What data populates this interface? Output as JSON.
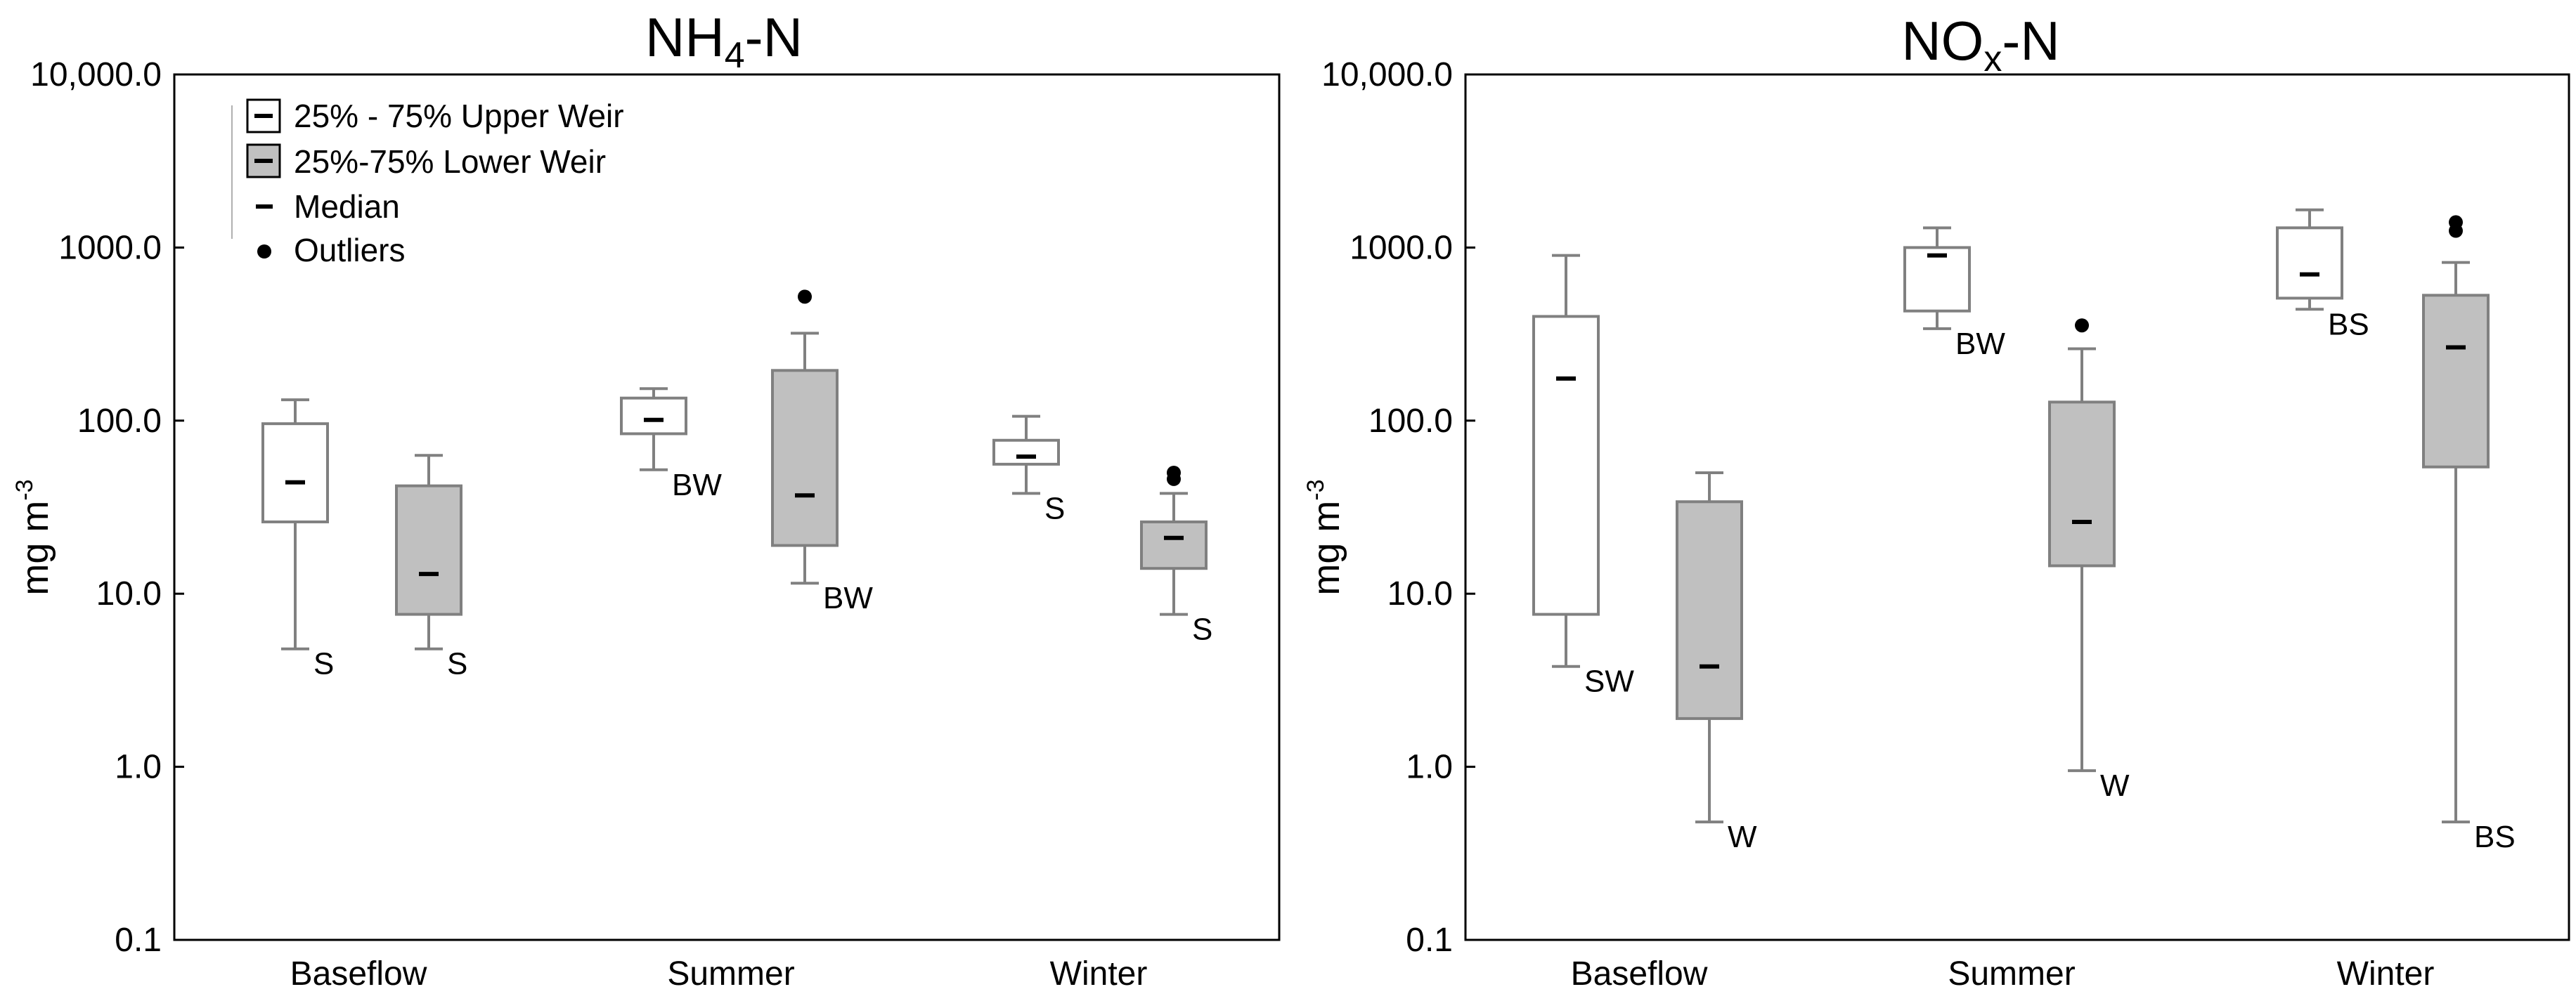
{
  "chart_data": [
    {
      "type": "box",
      "title": "NH4-N",
      "title_main": "NH",
      "title_sub": "4",
      "title_tail": "-N",
      "ylabel": "mg m",
      "ylabel_sup": "-3",
      "yscale": "log",
      "ylim": [
        0.1,
        10000
      ],
      "yticks": [
        0.1,
        1,
        10,
        100,
        1000,
        10000
      ],
      "ytick_labels": [
        "0.1",
        "1.0",
        "10.0",
        "100.0",
        "1000.0",
        "10,000.0"
      ],
      "categories": [
        "Baseflow",
        "Summer",
        "Winter"
      ],
      "legend": {
        "upper": "25% - 75% Upper Weir",
        "lower": "25%-75% Lower Weir",
        "median": "Median",
        "outliers": "Outliers"
      },
      "series": [
        {
          "name": "Upper Weir",
          "style": "upper",
          "boxes": [
            {
              "category": "Baseflow",
              "min": 4.8,
              "q1": 26,
              "median": 44,
              "q3": 96,
              "max": 132,
              "outliers": [],
              "label": "S"
            },
            {
              "category": "Summer",
              "min": 52,
              "q1": 84,
              "median": 101,
              "q3": 135,
              "max": 153,
              "outliers": [],
              "label": "BW"
            },
            {
              "category": "Winter",
              "min": 38,
              "q1": 56,
              "median": 62,
              "q3": 77,
              "max": 106,
              "outliers": [],
              "label": "S"
            }
          ]
        },
        {
          "name": "Lower Weir",
          "style": "lower",
          "boxes": [
            {
              "category": "Baseflow",
              "min": 4.8,
              "q1": 7.6,
              "median": 13,
              "q3": 42,
              "max": 63,
              "outliers": [],
              "label": "S"
            },
            {
              "category": "Summer",
              "min": 11.5,
              "q1": 19,
              "median": 37,
              "q3": 195,
              "max": 320,
              "outliers": [
                520
              ],
              "label": "BW"
            },
            {
              "category": "Winter",
              "min": 7.6,
              "q1": 14,
              "median": 21,
              "q3": 26,
              "max": 38,
              "outliers": [
                46,
                50
              ],
              "label": "S"
            }
          ]
        }
      ]
    },
    {
      "type": "box",
      "title": "NOx-N",
      "title_main": "NO",
      "title_sub": "x",
      "title_tail": "-N",
      "ylabel": "mg m",
      "ylabel_sup": "-3",
      "yscale": "log",
      "ylim": [
        0.1,
        10000
      ],
      "yticks": [
        0.1,
        1,
        10,
        100,
        1000,
        10000
      ],
      "ytick_labels": [
        "0.1",
        "1.0",
        "10.0",
        "100.0",
        "1000.0",
        "10,000.0"
      ],
      "categories": [
        "Baseflow",
        "Summer",
        "Winter"
      ],
      "series": [
        {
          "name": "Upper Weir",
          "style": "upper",
          "boxes": [
            {
              "category": "Baseflow",
              "min": 3.8,
              "q1": 7.6,
              "median": 175,
              "q3": 400,
              "max": 900,
              "outliers": [],
              "label": "SW"
            },
            {
              "category": "Summer",
              "min": 340,
              "q1": 430,
              "median": 900,
              "q3": 1000,
              "max": 1300,
              "outliers": [],
              "label": "BW"
            },
            {
              "category": "Winter",
              "min": 440,
              "q1": 510,
              "median": 700,
              "q3": 1300,
              "max": 1650,
              "outliers": [],
              "label": "BS"
            }
          ]
        },
        {
          "name": "Lower Weir",
          "style": "lower",
          "boxes": [
            {
              "category": "Baseflow",
              "min": 0.48,
              "q1": 1.9,
              "median": 3.8,
              "q3": 34,
              "max": 50,
              "outliers": [],
              "label": "W"
            },
            {
              "category": "Summer",
              "min": 0.95,
              "q1": 14.5,
              "median": 26,
              "q3": 128,
              "max": 260,
              "outliers": [
                355
              ],
              "label": "W"
            },
            {
              "category": "Winter",
              "min": 0.48,
              "q1": 54,
              "median": 265,
              "q3": 530,
              "max": 820,
              "outliers": [
                1250,
                1400
              ],
              "label": "BS"
            }
          ]
        }
      ]
    }
  ]
}
